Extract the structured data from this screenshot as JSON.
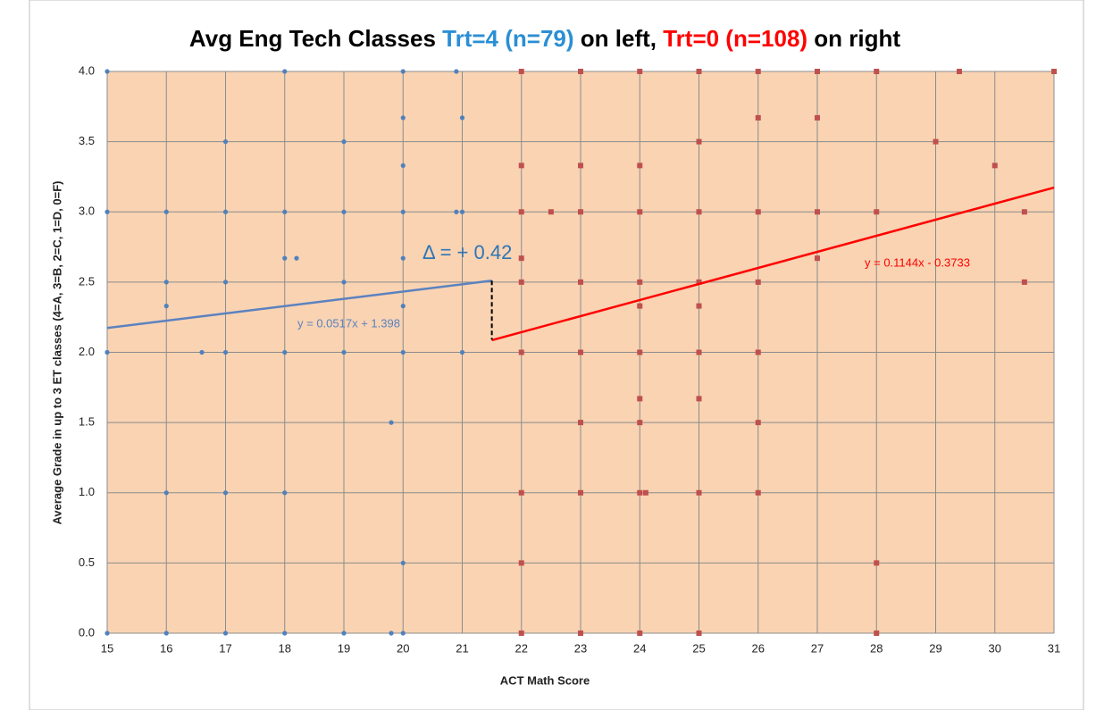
{
  "chart_data": {
    "type": "scatter",
    "title_parts": [
      {
        "text": "Avg Eng Tech Classes ",
        "color": "#000000"
      },
      {
        "text": "Trt=4 (n=79)",
        "color": "#2a8fd4"
      },
      {
        "text": " on left, ",
        "color": "#000000"
      },
      {
        "text": "Trt=0 (n=108)",
        "color": "#ff0000"
      },
      {
        "text": " on right",
        "color": "#000000"
      }
    ],
    "x_label": "ACT Math Score",
    "y_label": "Average Grade in up to 3 ET classes (4=A, 3=B, 2=C, 1=D, 0=F)",
    "xlim": [
      15,
      31
    ],
    "ylim": [
      0,
      4
    ],
    "xticks": [
      15,
      16,
      17,
      18,
      19,
      20,
      21,
      22,
      23,
      24,
      25,
      26,
      27,
      28,
      29,
      30,
      31
    ],
    "yticks": [
      {
        "value": 0,
        "label": "0.0"
      },
      {
        "value": 0.5,
        "label": "0.5"
      },
      {
        "value": 1,
        "label": "1.0"
      },
      {
        "value": 1.5,
        "label": "1.5"
      },
      {
        "value": 2,
        "label": "2.0"
      },
      {
        "value": 2.5,
        "label": "2.5"
      },
      {
        "value": 3,
        "label": "3.0"
      },
      {
        "value": 3.5,
        "label": "3.5"
      },
      {
        "value": 4,
        "label": "4.0"
      }
    ],
    "grid": true,
    "plot_background": "#f9d3b2",
    "series": [
      {
        "color": "#4f81bd",
        "marker": "circle",
        "x": [
          15,
          15,
          15,
          15,
          16,
          16,
          16,
          16,
          16,
          16.6,
          17,
          17,
          17,
          17,
          17,
          17,
          18,
          18,
          18,
          18,
          18,
          18,
          18.2,
          19,
          19,
          19,
          19,
          19,
          19.8,
          19.8,
          20,
          20,
          20,
          20,
          20,
          20,
          20,
          20,
          20,
          20.9,
          20.9,
          21,
          21,
          21
        ],
        "values": [
          4,
          3,
          2,
          0,
          3,
          2.5,
          2.33,
          1,
          0,
          2,
          3.5,
          3,
          2.5,
          2,
          1,
          0,
          4,
          3,
          2.67,
          2,
          1,
          0,
          2.67,
          3.5,
          3,
          2.5,
          2,
          0,
          1.5,
          0,
          4,
          3.67,
          3.33,
          3,
          2.67,
          2.33,
          2,
          0.5,
          0,
          4,
          3,
          3.67,
          3,
          2
        ]
      },
      {
        "color": "#c0504d",
        "marker": "square",
        "x": [
          22,
          22,
          22,
          22,
          22,
          22,
          22,
          22,
          22,
          22.5,
          23,
          23,
          23,
          23,
          23,
          23,
          23,
          23,
          24,
          24,
          24,
          24,
          24,
          24,
          24,
          24,
          24,
          24,
          24.1,
          25,
          25,
          25,
          25,
          25,
          25,
          25,
          25,
          25,
          26,
          26,
          26,
          26,
          26,
          26,
          26,
          27,
          27,
          27,
          27,
          28,
          28,
          28,
          28,
          29,
          29.4,
          30,
          30.5,
          30.5,
          31
        ],
        "values": [
          4,
          3.33,
          3,
          2.67,
          2.5,
          2,
          1,
          0.5,
          0,
          3,
          4,
          3.33,
          3,
          2.5,
          2,
          1.5,
          1,
          0,
          4,
          3.33,
          3,
          2.5,
          2.33,
          2,
          1.67,
          1.5,
          1,
          0,
          1,
          4,
          3.5,
          3,
          2.5,
          2.33,
          2,
          1.67,
          1,
          0,
          4,
          3.67,
          3,
          2.5,
          2,
          1.5,
          1,
          4,
          3.67,
          3,
          2.67,
          4,
          3,
          0.5,
          0,
          3.5,
          4,
          3.33,
          3,
          2.5,
          4
        ]
      }
    ],
    "trendlines": [
      {
        "label": "y = 0.0517x + 1.398",
        "color": "#5b82c0",
        "x": [
          15,
          21.5
        ],
        "values": [
          2.1735,
          2.51
        ]
      },
      {
        "label": "y = 0.1144x - 0.3733",
        "color": "#ff0000",
        "x": [
          21.5,
          31
        ],
        "values": [
          2.0863,
          3.173
        ]
      }
    ],
    "delta": {
      "label": "Δ = + 0.42",
      "color": "#2e75b6",
      "x": 21.5,
      "values": [
        2.51,
        2.09
      ]
    }
  }
}
